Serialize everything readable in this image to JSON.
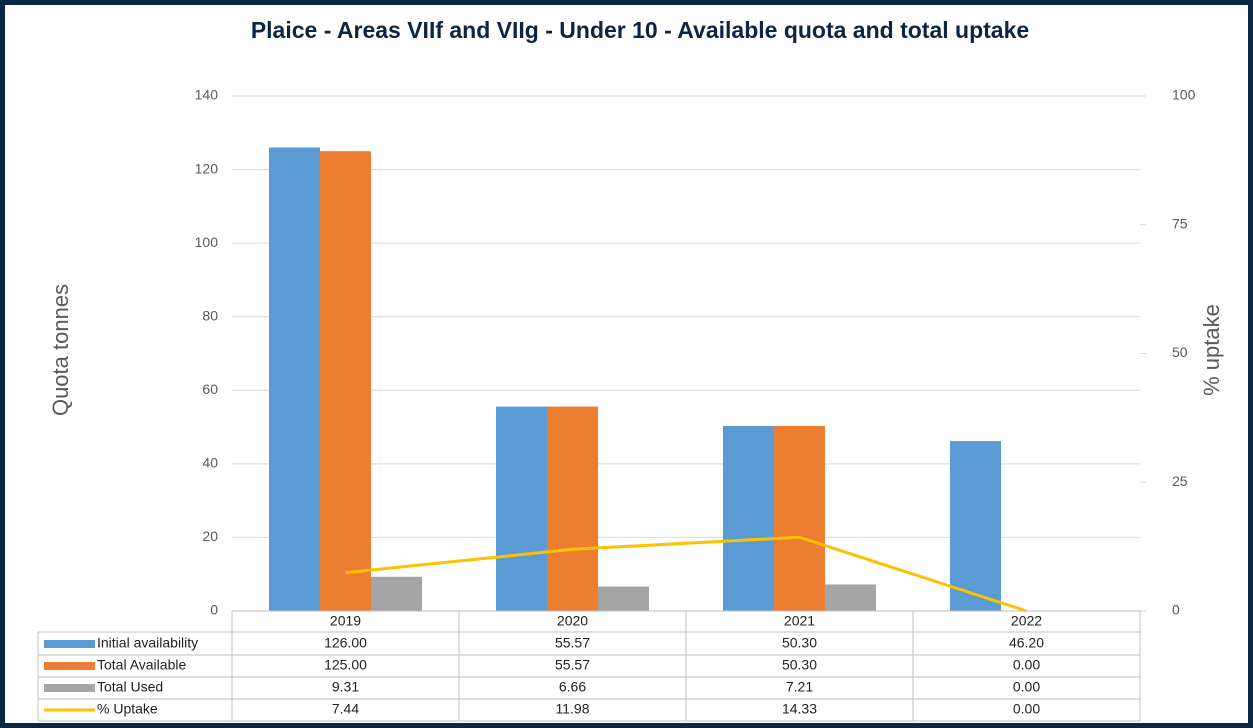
{
  "chart_data": {
    "type": "bar",
    "title": "Plaice - Areas VIIf and VIIg - Under 10 - Available quota and total uptake",
    "ylabel": "Quota tonnes",
    "y2label": "% uptake",
    "categories": [
      "2019",
      "2020",
      "2021",
      "2022"
    ],
    "series": [
      {
        "name": "Initial availability",
        "color": "#5b9bd5",
        "type": "bar",
        "values": [
          126.0,
          55.57,
          50.3,
          46.2
        ],
        "value_labels": [
          "126.00",
          "55.57",
          "50.30",
          "46.20"
        ]
      },
      {
        "name": "Total Available",
        "color": "#ed7d31",
        "type": "bar",
        "values": [
          125.0,
          55.57,
          50.3,
          0.0
        ],
        "value_labels": [
          "125.00",
          "55.57",
          "50.30",
          "0.00"
        ]
      },
      {
        "name": "Total Used",
        "color": "#a5a5a5",
        "type": "bar",
        "values": [
          9.31,
          6.66,
          7.21,
          0.0
        ],
        "value_labels": [
          "9.31",
          "6.66",
          "7.21",
          "0.00"
        ]
      },
      {
        "name": "% Uptake",
        "color": "#ffc000",
        "type": "line",
        "axis": "y2",
        "values": [
          7.44,
          11.98,
          14.33,
          0.0
        ],
        "value_labels": [
          "7.44",
          "11.98",
          "14.33",
          "0.00"
        ]
      }
    ],
    "ylim": [
      0,
      140
    ],
    "yticks": [
      0,
      20,
      40,
      60,
      80,
      100,
      120,
      140
    ],
    "y2lim": [
      0,
      100
    ],
    "y2ticks": [
      0,
      25,
      50,
      75,
      100
    ],
    "grid": true
  }
}
